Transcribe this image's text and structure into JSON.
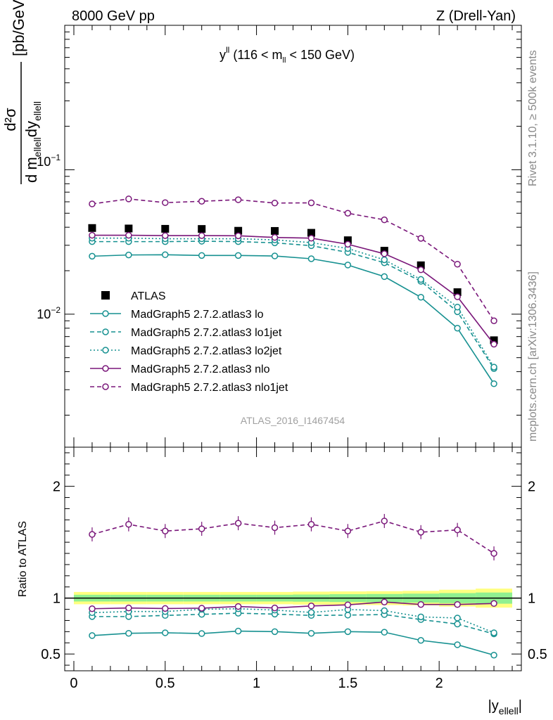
{
  "header": {
    "left": "8000 GeV pp",
    "right": "Z (Drell-Yan)"
  },
  "side_text": {
    "rivet": "Rivet 3.1.10, ≥ 500k events",
    "mcplots": "mcplots.cern.ch [arXiv:1306.3436]"
  },
  "chart_data": [
    {
      "type": "line",
      "panel": "main",
      "title": "y^ll (116 < m_ll < 150 GeV)",
      "title_parts": {
        "y": "y",
        "y_sup": "ll",
        "pre": " (116 < m",
        "m_sub": "ll",
        "post": " < 150 GeV)"
      },
      "ylabel": "d²σ / d m_ellell dy_ellell [pb/GeV]",
      "ylabel_parts": {
        "num": "d²σ",
        "den_a": "d m",
        "den_a_sub": "ellell",
        "den_b": "dy",
        "den_b_sub": "ellell",
        "unit": "[pb/GeV]"
      },
      "yscale": "log",
      "ylim": [
        0.0012,
        1.0
      ],
      "xlim": [
        -0.05,
        2.45
      ],
      "ytick_labels": [
        "10^-1",
        "10^-2"
      ],
      "watermark": "ATLAS_2016_I1467454",
      "legend_position": "middle-left",
      "x": [
        0.1,
        0.3,
        0.5,
        0.7,
        0.9,
        1.1,
        1.3,
        1.5,
        1.7,
        1.9,
        2.1,
        2.3
      ],
      "series": [
        {
          "name": "ATLAS",
          "color": "#000000",
          "style": "data",
          "values": [
            0.0395,
            0.0392,
            0.039,
            0.0389,
            0.0378,
            0.0377,
            0.0366,
            0.0325,
            0.0275,
            0.0218,
            0.0142,
            0.0066
          ]
        },
        {
          "name": "MadGraph5 2.7.2.atlas3 lo",
          "color": "#179191",
          "style": "solid",
          "values": [
            0.0252,
            0.0257,
            0.0258,
            0.0255,
            0.0255,
            0.0253,
            0.0242,
            0.0219,
            0.0182,
            0.0131,
            0.008,
            0.0033
          ]
        },
        {
          "name": "MadGraph5 2.7.2.atlas3 lo1jet",
          "color": "#179191",
          "style": "dashed",
          "values": [
            0.0318,
            0.0318,
            0.0318,
            0.032,
            0.0318,
            0.0312,
            0.0298,
            0.0268,
            0.0227,
            0.0169,
            0.0104,
            0.0042
          ]
        },
        {
          "name": "MadGraph5 2.7.2.atlas3 lo2jet",
          "color": "#179191",
          "style": "dotted",
          "values": [
            0.0336,
            0.0336,
            0.0333,
            0.0333,
            0.0333,
            0.0327,
            0.0313,
            0.0285,
            0.0238,
            0.0174,
            0.0112,
            0.0043
          ]
        },
        {
          "name": "MadGraph5 2.7.2.atlas3 nlo",
          "color": "#7a177a",
          "style": "solid",
          "values": [
            0.0352,
            0.0352,
            0.035,
            0.035,
            0.0349,
            0.034,
            0.0336,
            0.0305,
            0.0262,
            0.0203,
            0.0132,
            0.0062
          ]
        },
        {
          "name": "MadGraph5 2.7.2.atlas3 nlo1jet",
          "color": "#7a177a",
          "style": "dashed",
          "values": [
            0.058,
            0.0628,
            0.0592,
            0.0605,
            0.062,
            0.0588,
            0.059,
            0.05,
            0.045,
            0.0335,
            0.0222,
            0.009
          ]
        }
      ]
    },
    {
      "type": "line",
      "panel": "ratio",
      "ylabel": "Ratio to ATLAS",
      "xlabel": "|y_ellell|",
      "xlabel_parts": {
        "main": "|y",
        "sub": "ellell",
        "end": "|"
      },
      "ylim": [
        0.35,
        2.35
      ],
      "xlim": [
        -0.05,
        2.45
      ],
      "yticks": [
        0.5,
        1,
        2
      ],
      "ytick_labels": [
        "0.5",
        "1",
        "2"
      ],
      "xticks": [
        0,
        0.5,
        1,
        1.5,
        2
      ],
      "xtick_labels": [
        "0",
        "0.5",
        "1",
        "1.5",
        "2"
      ],
      "x": [
        0.1,
        0.3,
        0.5,
        0.7,
        0.9,
        1.1,
        1.3,
        1.5,
        1.7,
        1.9,
        2.1,
        2.3
      ],
      "band": {
        "outer_halfwidth": [
          0.055,
          0.055,
          0.055,
          0.055,
          0.055,
          0.055,
          0.058,
          0.06,
          0.062,
          0.065,
          0.075,
          0.085
        ],
        "inner_halfwidth": [
          0.03,
          0.03,
          0.03,
          0.03,
          0.03,
          0.03,
          0.032,
          0.035,
          0.037,
          0.04,
          0.045,
          0.05
        ]
      },
      "series": [
        {
          "name": "MadGraph5 2.7.2.atlas3 lo",
          "color": "#179191",
          "style": "solid",
          "values": [
            0.665,
            0.685,
            0.69,
            0.683,
            0.705,
            0.7,
            0.685,
            0.7,
            0.695,
            0.622,
            0.583,
            0.49
          ]
        },
        {
          "name": "MadGraph5 2.7.2.atlas3 lo1jet",
          "color": "#179191",
          "style": "dashed",
          "values": [
            0.835,
            0.835,
            0.845,
            0.855,
            0.865,
            0.857,
            0.845,
            0.848,
            0.853,
            0.808,
            0.768,
            0.68
          ]
        },
        {
          "name": "MadGraph5 2.7.2.atlas3 lo2jet",
          "color": "#179191",
          "style": "dotted",
          "values": [
            0.87,
            0.88,
            0.88,
            0.9,
            0.905,
            0.893,
            0.872,
            0.898,
            0.888,
            0.832,
            0.822,
            0.69
          ]
        },
        {
          "name": "MadGraph5 2.7.2.atlas3 nlo",
          "color": "#7a177a",
          "style": "solid",
          "values": [
            0.905,
            0.912,
            0.907,
            0.91,
            0.925,
            0.912,
            0.93,
            0.94,
            0.965,
            0.943,
            0.943,
            0.952
          ]
        },
        {
          "name": "MadGraph5 2.7.2.atlas3 nlo1jet",
          "color": "#7a177a",
          "style": "dashed",
          "values": [
            1.57,
            1.66,
            1.6,
            1.62,
            1.67,
            1.63,
            1.66,
            1.6,
            1.69,
            1.59,
            1.61,
            1.4
          ]
        }
      ]
    }
  ]
}
